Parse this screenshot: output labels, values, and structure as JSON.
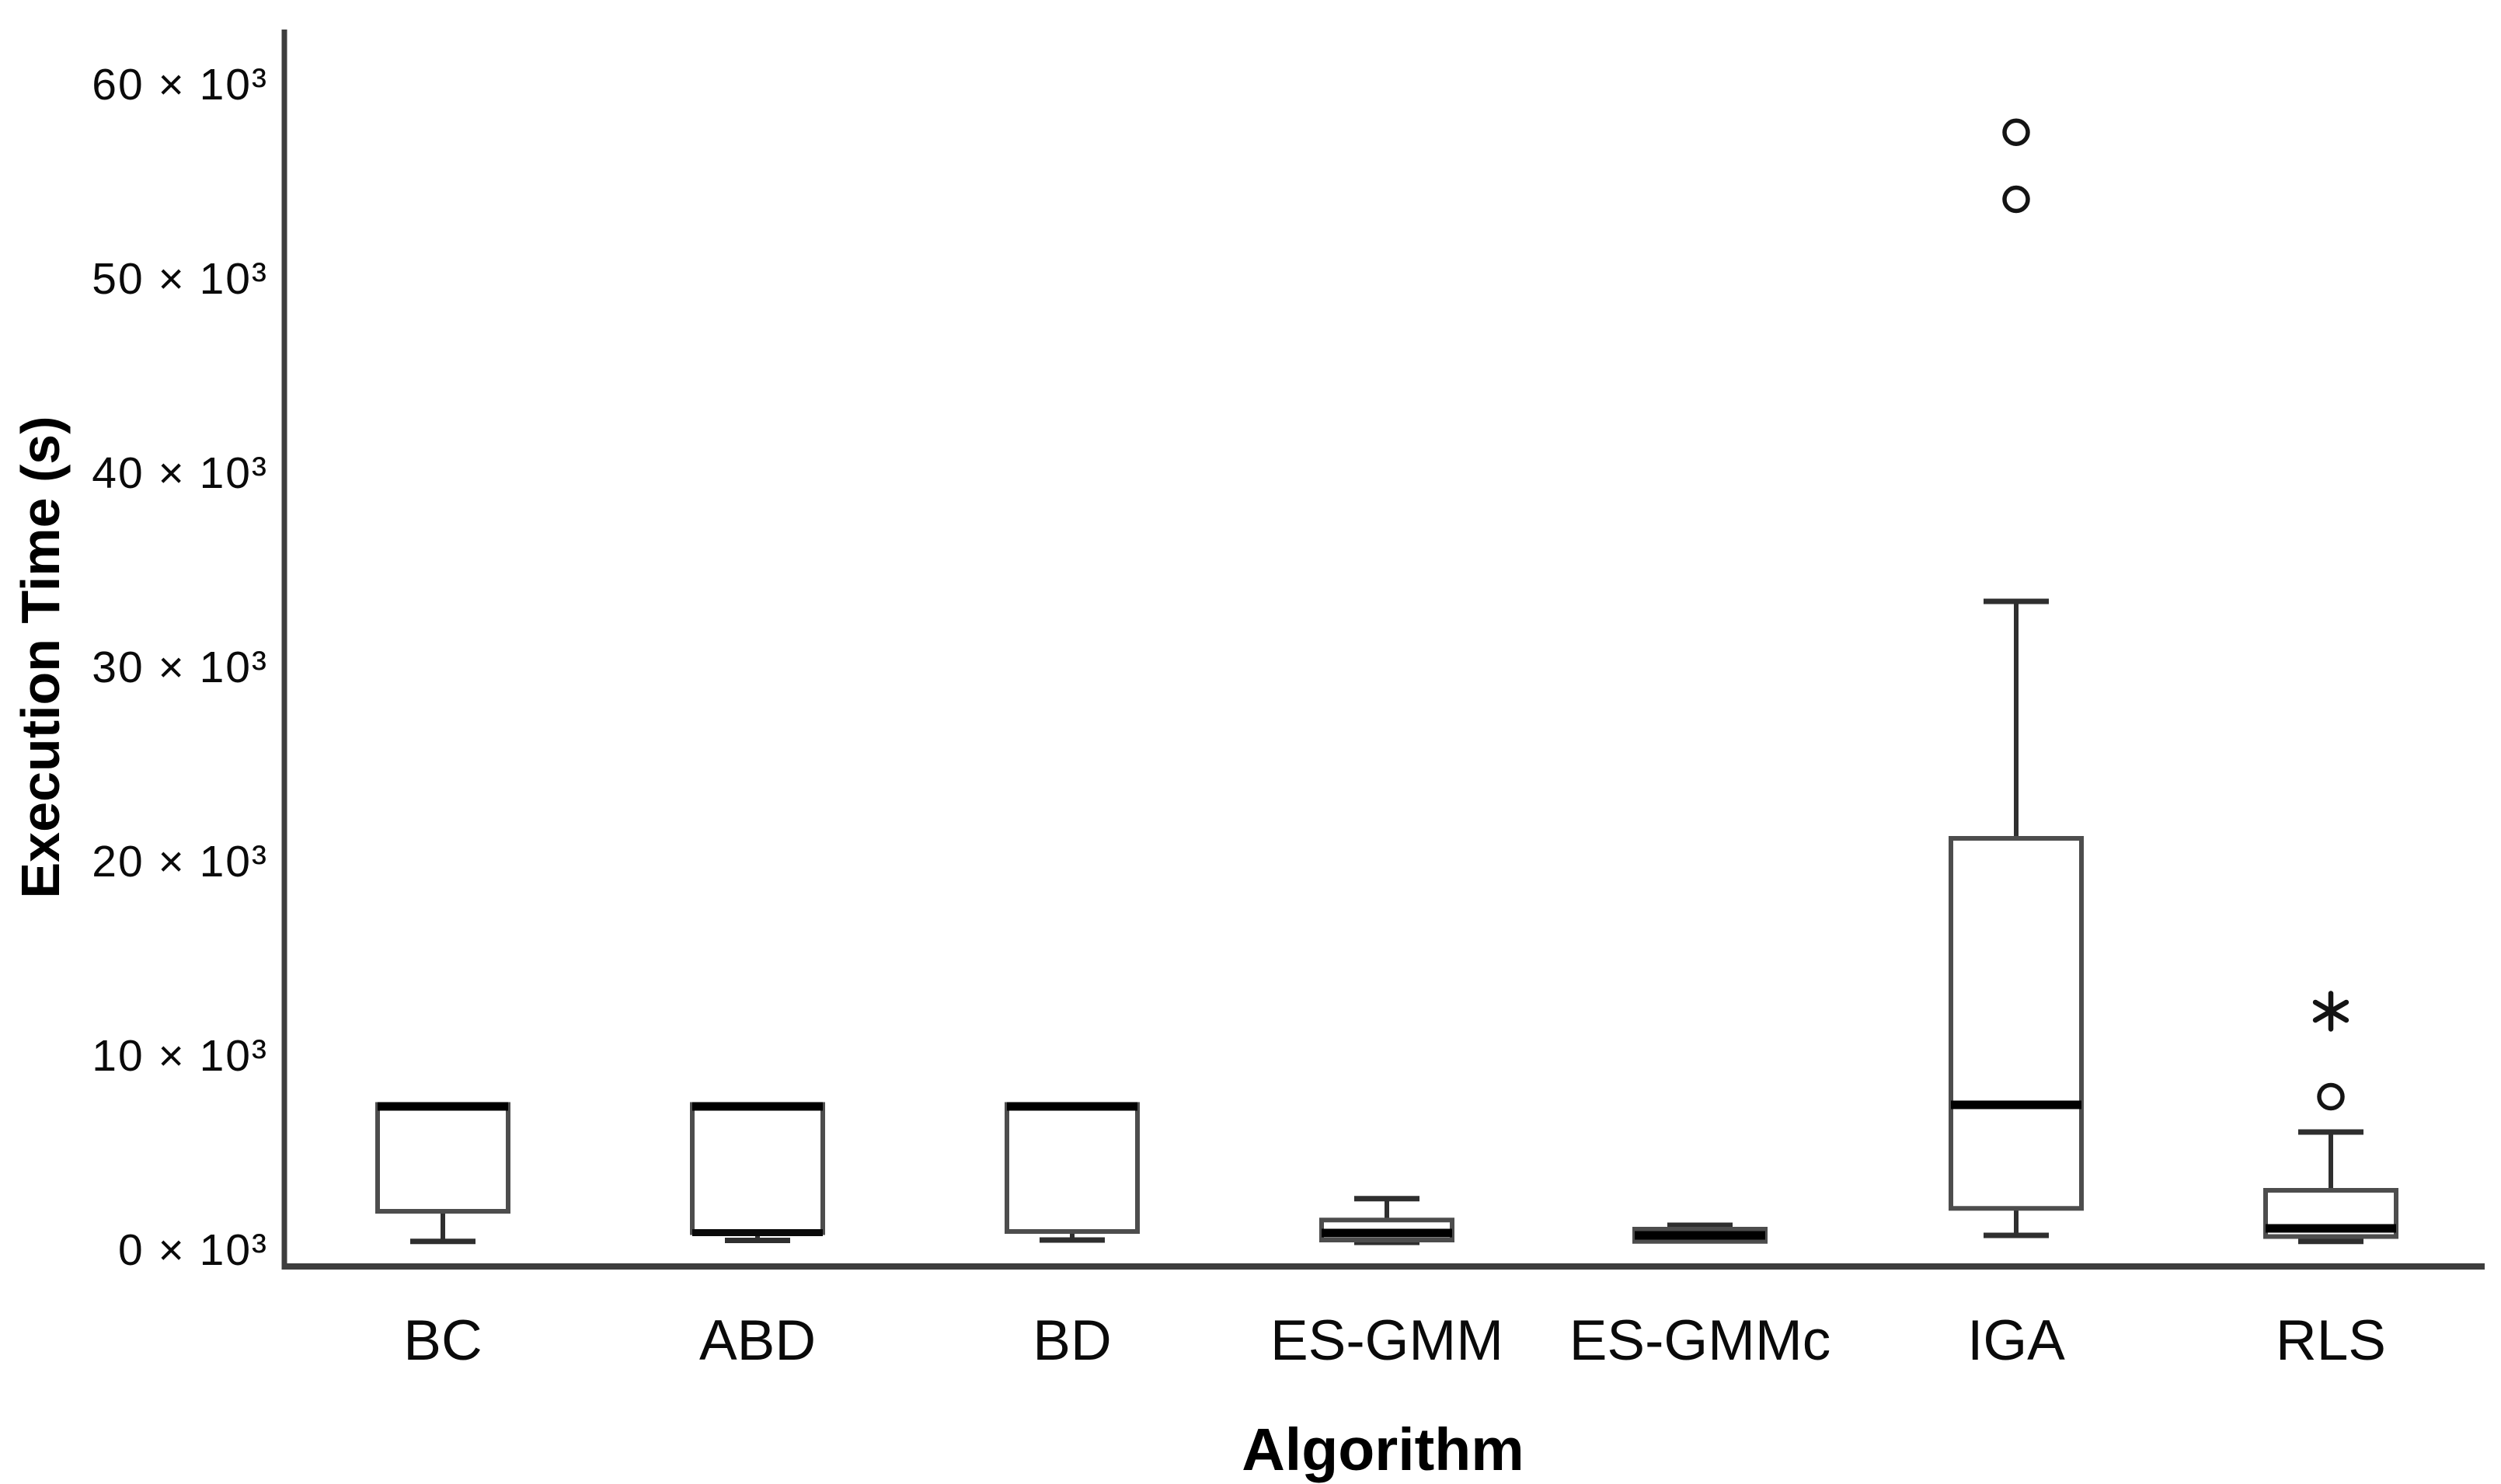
{
  "figure": {
    "background": "#ffffff",
    "text_color": "#000000"
  },
  "chart_data": {
    "type": "boxplot",
    "title": "",
    "xlabel": "Algorithm",
    "ylabel": "Execution Time (s)",
    "unit": "seconds",
    "y_axis": {
      "min": 0,
      "max": 60000,
      "tick_step": 10000,
      "tick_values": [
        0,
        10000,
        20000,
        30000,
        40000,
        50000,
        60000
      ],
      "tick_labels": [
        "0 × 10³",
        "10 × 10³",
        "20 × 10³",
        "30 × 10³",
        "40 × 10³",
        "50 × 10³",
        "60 × 10³"
      ],
      "grid": false
    },
    "categories": [
      "BC",
      "ABD",
      "BD",
      "ES-GMM",
      "ES-GMMc",
      "IGA",
      "RLS"
    ],
    "boxes": [
      {
        "label": "BC",
        "min": 450,
        "q1": 2000,
        "median": 7400,
        "q3": 7500,
        "max": 7500,
        "outliers": [],
        "extreme_outliers": [],
        "dark_q1_edge": false
      },
      {
        "label": "ABD",
        "min": 500,
        "q1": 900,
        "median": 7400,
        "q3": 7500,
        "max": 7500,
        "outliers": [],
        "extreme_outliers": [],
        "dark_q1_edge": true
      },
      {
        "label": "BD",
        "min": 520,
        "q1": 960,
        "median": 7400,
        "q3": 7500,
        "max": 7500,
        "outliers": [],
        "extreme_outliers": [],
        "dark_q1_edge": false
      },
      {
        "label": "ES-GMM",
        "min": 400,
        "q1": 520,
        "median": 880,
        "q3": 1550,
        "max": 2650,
        "outliers": [],
        "extreme_outliers": [],
        "dark_q1_edge": false
      },
      {
        "label": "ES-GMMc",
        "min": 380,
        "q1": 450,
        "median": 760,
        "q3": 1080,
        "max": 1280,
        "outliers": [],
        "extreme_outliers": [],
        "dark_q1_edge": false
      },
      {
        "label": "IGA",
        "min": 760,
        "q1": 2150,
        "median": 7480,
        "q3": 21200,
        "max": 33400,
        "outliers": [
          57550,
          54100
        ],
        "extreme_outliers": [],
        "dark_q1_edge": false
      },
      {
        "label": "RLS",
        "min": 450,
        "q1": 700,
        "median": 1120,
        "q3": 3080,
        "max": 6080,
        "outliers": [
          7900
        ],
        "extreme_outliers": [
          12300
        ],
        "dark_q1_edge": false
      }
    ],
    "colors": {
      "axis": "#3d3d3d",
      "box_stroke": "#4d4d4d",
      "box_fill": "#ffffff",
      "median": "#000000",
      "whisker": "#2f2f2f",
      "outlier": "#141414"
    }
  }
}
